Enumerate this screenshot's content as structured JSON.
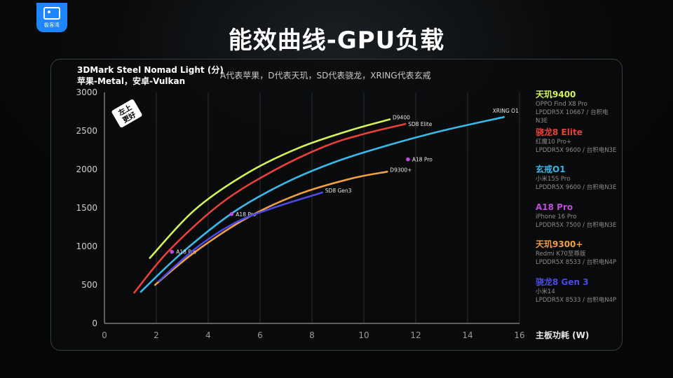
{
  "brand": {
    "logo_text": "极客湾",
    "accent": "#1e86ff"
  },
  "title": "能效曲线-GPU负载",
  "subtitle_line1": "3DMark Steel Nomad Light (分)",
  "subtitle_line2": "苹果-Metal，安卓-Vulkan",
  "note": "A代表苹果，D代表天玑，SD代表骁龙，XRING代表玄戒",
  "badge": "左上\n更好",
  "chart_data": {
    "type": "line",
    "xlabel": "主板功耗 (W)",
    "ylabel": "",
    "xlim": [
      0,
      16
    ],
    "ylim": [
      0,
      3000
    ],
    "x_ticks": [
      "0",
      "2",
      "4",
      "6",
      "8",
      "10",
      "12",
      "14",
      "16"
    ],
    "y_ticks": [
      "0",
      "500",
      "1000",
      "1500",
      "2000",
      "2500",
      "3000"
    ],
    "grid": "vertical",
    "legend": "right",
    "series": [
      {
        "name": "天玑9400",
        "device": "OPPO Find X8 Pro",
        "memory": "LPDDR5X 10667 / 台积电N3E",
        "color": "#d6f25a",
        "label": "D9400",
        "points": [
          [
            1.75,
            850
          ],
          [
            3.5,
            1480
          ],
          [
            5.5,
            1950
          ],
          [
            7.5,
            2280
          ],
          [
            9.5,
            2510
          ],
          [
            11.0,
            2650
          ]
        ]
      },
      {
        "name": "骁龙8 Elite",
        "device": "红魔10 Pro+",
        "memory": "LPDDR5X 9600 / 台积电N3E",
        "color": "#e8413a",
        "label": "SD8 Elite",
        "points": [
          [
            1.15,
            400
          ],
          [
            2.5,
            950
          ],
          [
            4.5,
            1560
          ],
          [
            6.5,
            1980
          ],
          [
            8.5,
            2300
          ],
          [
            10.0,
            2460
          ],
          [
            11.6,
            2590
          ]
        ]
      },
      {
        "name": "玄戒O1",
        "device": "小米15S Pro",
        "memory": "LPDDR5X 9600 / 台积电N3E",
        "color": "#3ab8e8",
        "label": "XRING O1",
        "points": [
          [
            1.4,
            410
          ],
          [
            3.0,
            920
          ],
          [
            5.0,
            1450
          ],
          [
            7.0,
            1830
          ],
          [
            9.0,
            2110
          ],
          [
            11.0,
            2320
          ],
          [
            13.0,
            2500
          ],
          [
            15.4,
            2680
          ]
        ]
      },
      {
        "name": "A18 Pro",
        "device": "iPhone 16 Pro",
        "memory": "LPDDR5X 7500 / 台积电N3E",
        "color": "#c04be0",
        "label": "A18 Pro",
        "points": [
          [
            2.6,
            930
          ],
          [
            4.9,
            1420
          ],
          [
            11.7,
            2130
          ]
        ]
      },
      {
        "name": "天玑9300+",
        "device": "Redmi K70至尊版",
        "memory": "LPDDR5X 8533 / 台积电N4P",
        "color": "#f0a040",
        "label": "D9300+",
        "points": [
          [
            1.95,
            500
          ],
          [
            3.5,
            930
          ],
          [
            5.5,
            1370
          ],
          [
            7.5,
            1680
          ],
          [
            9.5,
            1880
          ],
          [
            10.9,
            1970
          ]
        ]
      },
      {
        "name": "骁龙8 Gen 3",
        "device": "小米14",
        "memory": "LPDDR5X 8533 / 台积电N4P",
        "color": "#4a4be8",
        "label": "SD8 Gen3",
        "points": [
          [
            2.1,
            550
          ],
          [
            3.5,
            970
          ],
          [
            5.0,
            1300
          ],
          [
            6.5,
            1500
          ],
          [
            8.4,
            1700
          ]
        ]
      }
    ]
  }
}
